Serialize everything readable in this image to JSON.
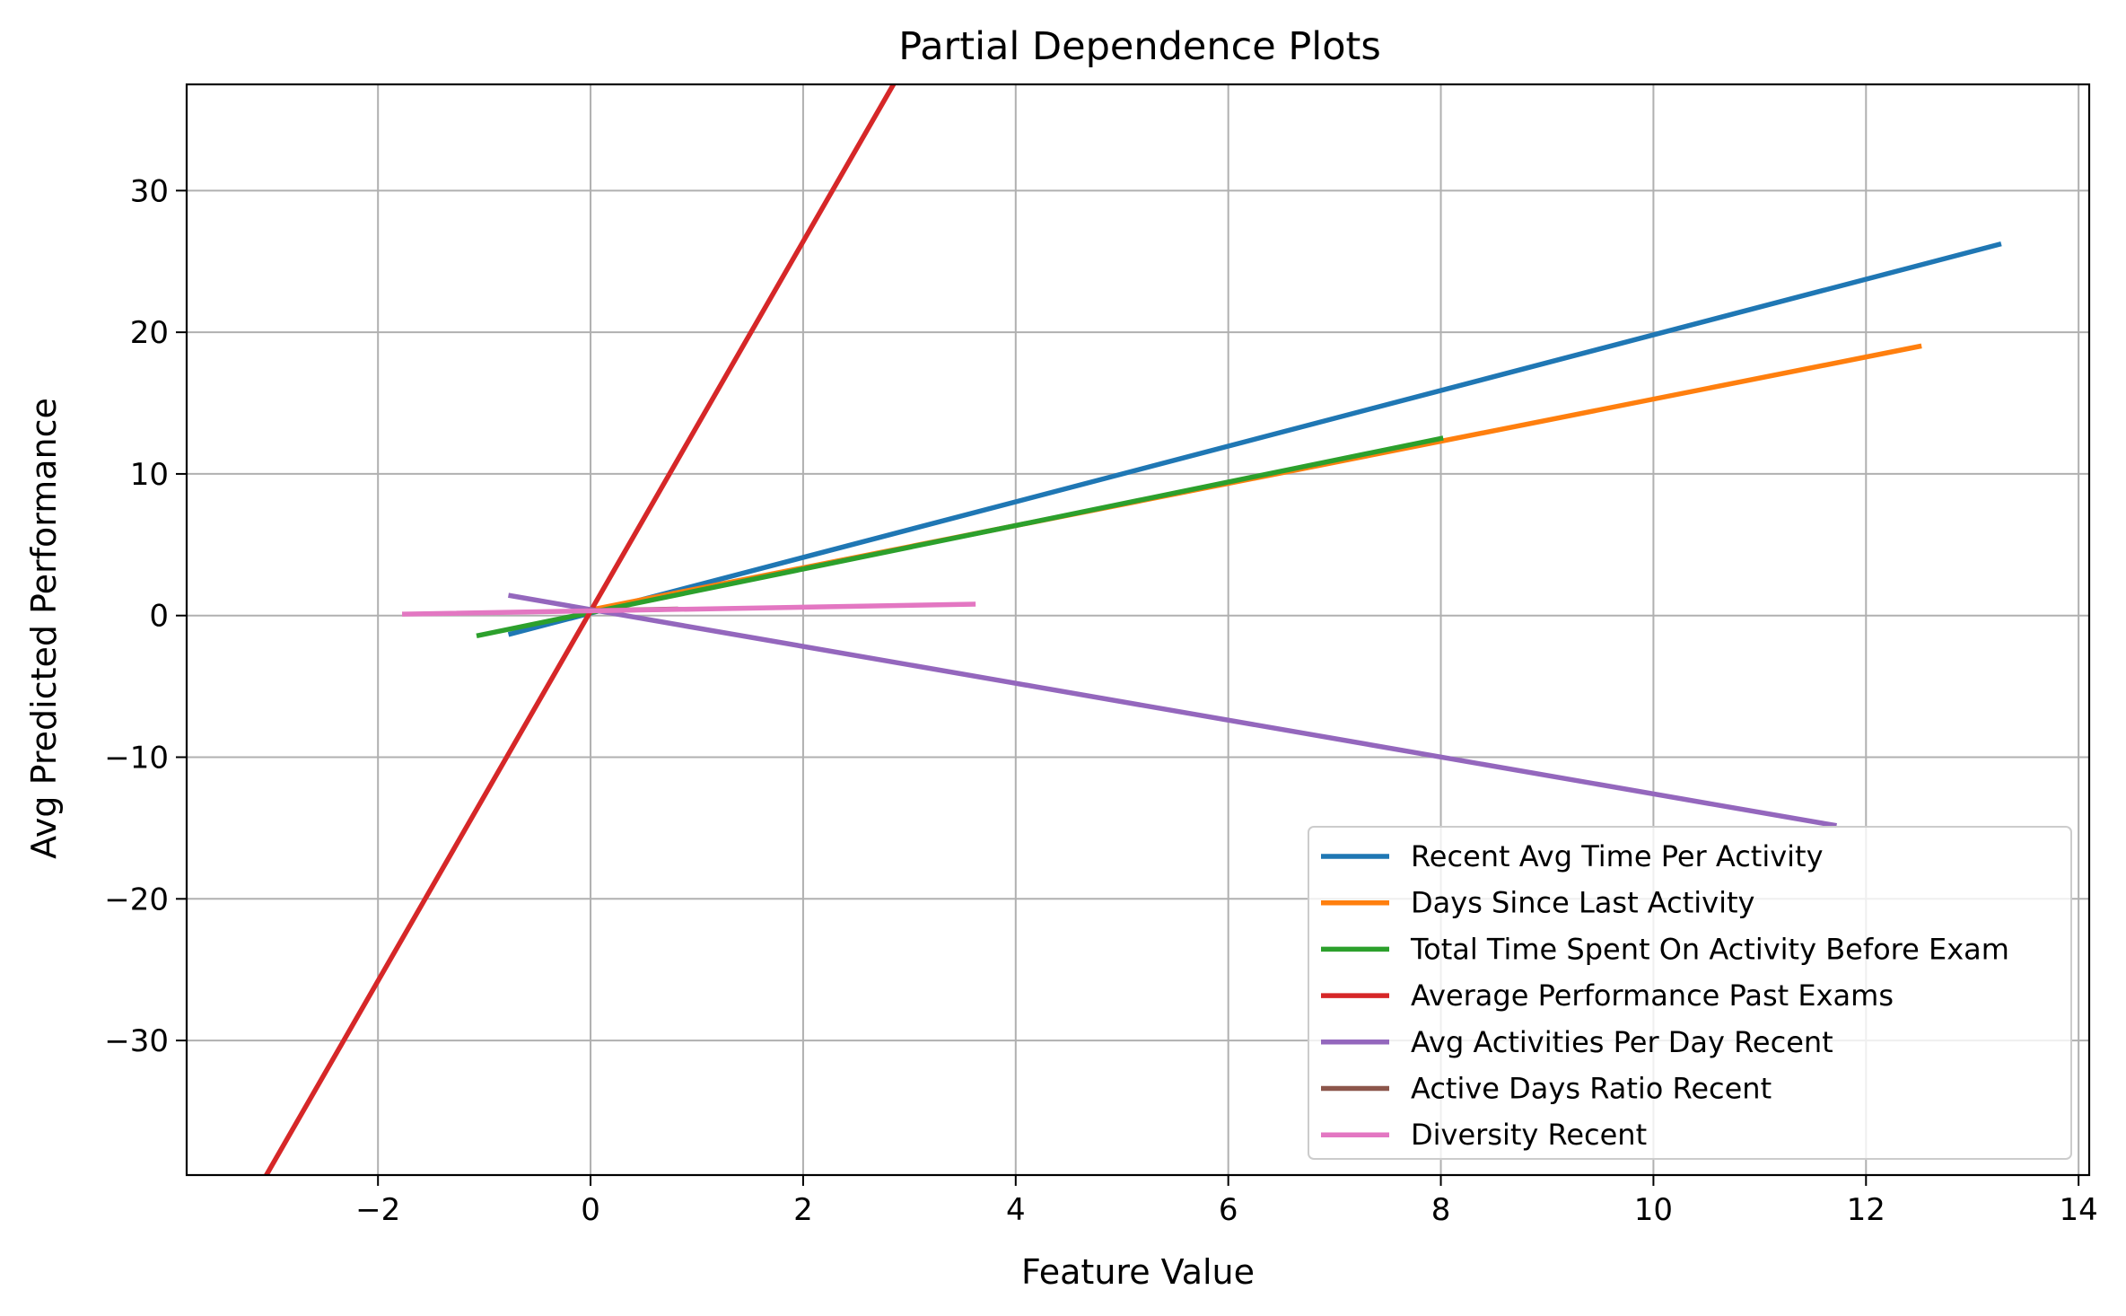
{
  "chart_data": {
    "type": "line",
    "title": "Partial Dependence Plots",
    "xlabel": "Feature Value",
    "ylabel": "Avg Predicted Performance",
    "xlim": [
      -3.8,
      14.1
    ],
    "ylim": [
      -39.5,
      37.5
    ],
    "x_ticks": [
      -2,
      0,
      2,
      4,
      6,
      8,
      10,
      12,
      14
    ],
    "x_tick_labels": [
      "−2",
      "0",
      "2",
      "4",
      "6",
      "8",
      "10",
      "12",
      "14"
    ],
    "y_ticks": [
      -30,
      -20,
      -10,
      0,
      10,
      20,
      30
    ],
    "y_tick_labels": [
      "−30",
      "−20",
      "−10",
      "0",
      "10",
      "20",
      "30"
    ],
    "grid": true,
    "legend_position": "lower-right",
    "series": [
      {
        "name": "Recent Avg Time Per Activity",
        "color": "#1f77b4",
        "x": [
          -0.75,
          13.25
        ],
        "y": [
          -1.3,
          26.2
        ]
      },
      {
        "name": "Days Since Last Activity",
        "color": "#ff7f0e",
        "x": [
          0,
          12.5
        ],
        "y": [
          0.4,
          19.0
        ]
      },
      {
        "name": "Total Time Spent On Activity Before Exam",
        "color": "#2ca02c",
        "x": [
          -1.05,
          8.0
        ],
        "y": [
          -1.4,
          12.5
        ]
      },
      {
        "name": "Average Performance Past Exams",
        "color": "#d62728",
        "x": [
          -3.05,
          2.85
        ],
        "y": [
          -39.5,
          37.5
        ]
      },
      {
        "name": "Avg Activities Per Day Recent",
        "color": "#9467bd",
        "x": [
          -0.75,
          11.7
        ],
        "y": [
          1.4,
          -14.8
        ]
      },
      {
        "name": "Active Days Ratio Recent",
        "color": "#8c564b",
        "x": [
          0,
          0.8
        ],
        "y": [
          0.35,
          0.45
        ]
      },
      {
        "name": "Diversity Recent",
        "color": "#e377c2",
        "x": [
          -1.75,
          3.6
        ],
        "y": [
          0.1,
          0.8
        ]
      }
    ]
  }
}
